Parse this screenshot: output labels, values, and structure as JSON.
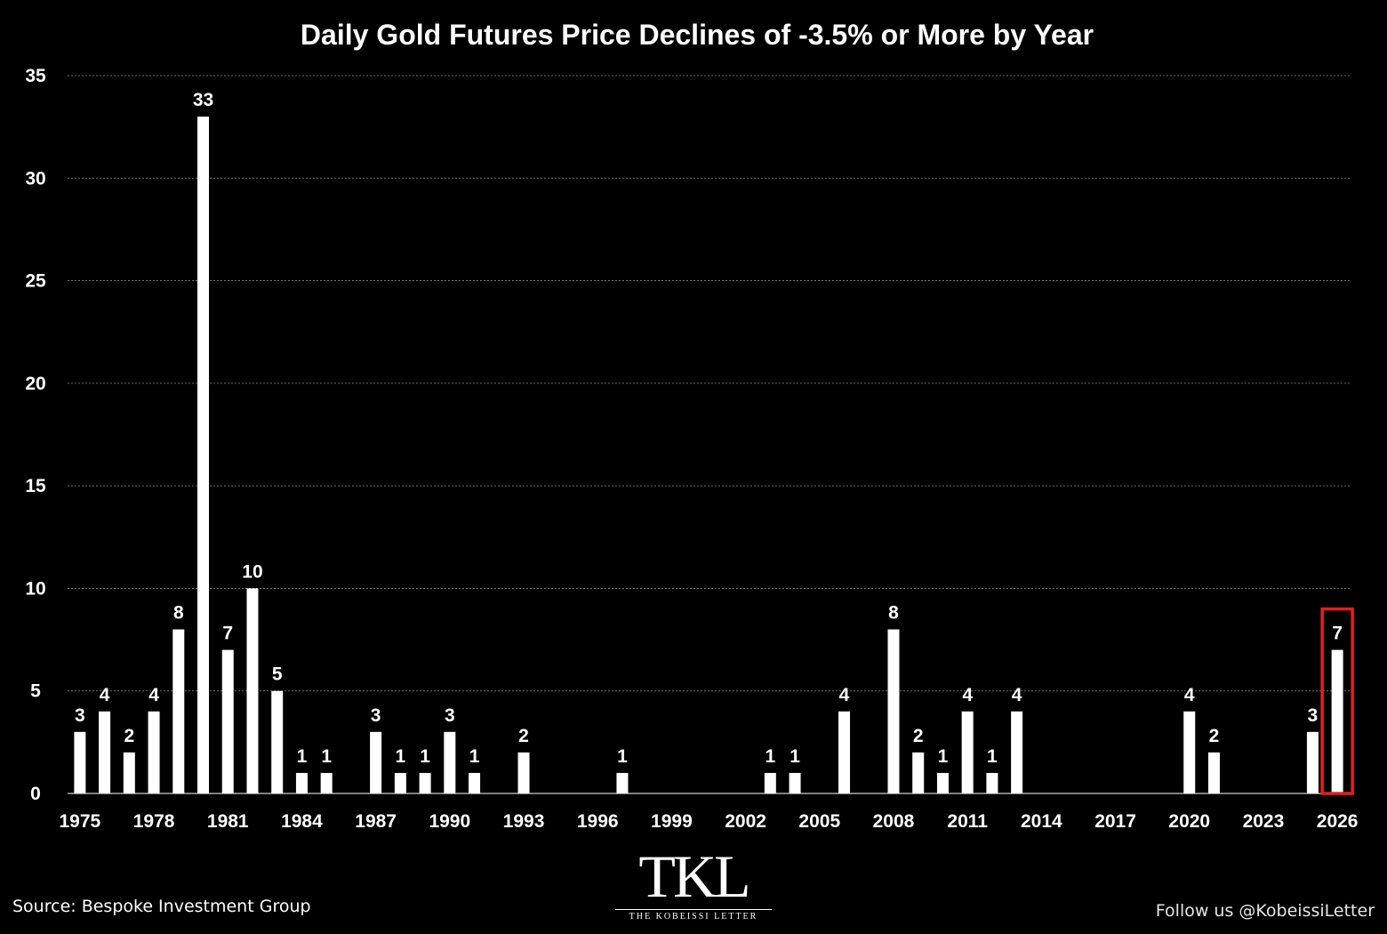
{
  "footer": {
    "source": "Source: Bespoke Investment Group",
    "follow": "Follow us @KobeissiLetter"
  },
  "logo": {
    "mark": "TKL",
    "subtitle": "THE KOBEISSI LETTER"
  },
  "colors": {
    "background": "#000000",
    "bar": "#ffffff",
    "text": "#ffffff",
    "highlight": "#e02020",
    "grid": "#8a8a8a"
  },
  "chart_data": {
    "type": "bar",
    "title": "Daily Gold Futures Price Declines of -3.5% or More by Year",
    "xlabel": "",
    "ylabel": "",
    "ylim": [
      0,
      35
    ],
    "yticks": [
      0,
      5,
      10,
      15,
      20,
      25,
      30,
      35
    ],
    "xtick_labels": [
      "1975",
      "1978",
      "1981",
      "1984",
      "1987",
      "1990",
      "1993",
      "1996",
      "1999",
      "2002",
      "2005",
      "2008",
      "2011",
      "2014",
      "2017",
      "2020",
      "2023",
      "2026"
    ],
    "grid": "horizontal dotted",
    "data_labels": true,
    "highlighted_category": "2026",
    "categories": [
      "1975",
      "1976",
      "1977",
      "1978",
      "1979",
      "1980",
      "1981",
      "1982",
      "1983",
      "1984",
      "1985",
      "1986",
      "1987",
      "1988",
      "1989",
      "1990",
      "1991",
      "1992",
      "1993",
      "1994",
      "1995",
      "1996",
      "1997",
      "1998",
      "1999",
      "2000",
      "2001",
      "2002",
      "2003",
      "2004",
      "2005",
      "2006",
      "2007",
      "2008",
      "2009",
      "2010",
      "2011",
      "2012",
      "2013",
      "2014",
      "2015",
      "2016",
      "2017",
      "2018",
      "2019",
      "2020",
      "2021",
      "2022",
      "2023",
      "2024",
      "2025",
      "2026"
    ],
    "values": [
      3,
      4,
      2,
      4,
      8,
      33,
      7,
      10,
      5,
      1,
      1,
      0,
      3,
      1,
      1,
      3,
      1,
      0,
      2,
      0,
      0,
      0,
      1,
      0,
      0,
      0,
      0,
      0,
      1,
      1,
      0,
      4,
      0,
      8,
      2,
      1,
      4,
      1,
      4,
      0,
      0,
      0,
      0,
      0,
      0,
      4,
      2,
      0,
      0,
      0,
      3,
      7
    ]
  }
}
